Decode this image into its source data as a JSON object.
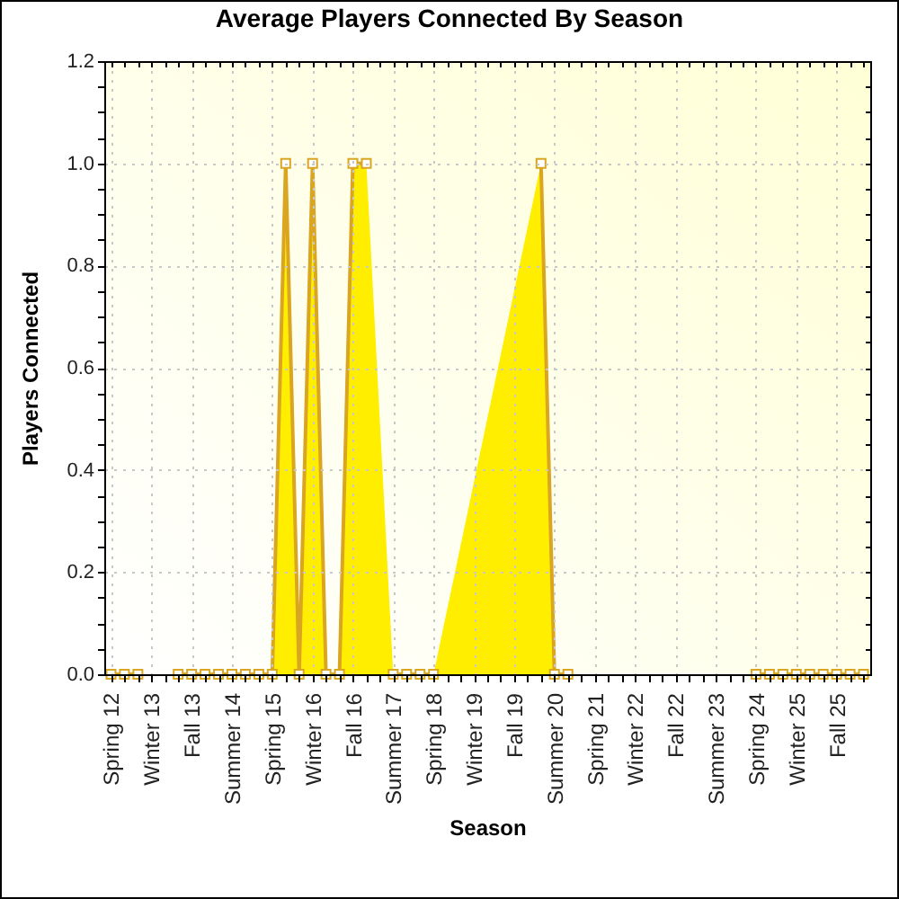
{
  "chart_data": {
    "type": "area",
    "title": "Average Players Connected By Season",
    "xlabel": "Season",
    "ylabel": "Players Connected",
    "categories": [
      "Spring 12",
      null,
      null,
      "Winter 13",
      null,
      null,
      "Fall 13",
      null,
      null,
      "Summer 14",
      null,
      null,
      "Spring 15",
      null,
      null,
      "Winter 16",
      null,
      null,
      "Fall 16",
      null,
      null,
      "Summer 17",
      null,
      null,
      "Spring 18",
      null,
      null,
      "Winter 19",
      null,
      null,
      "Fall 19",
      null,
      null,
      "Summer 20",
      null,
      null,
      "Spring 21",
      null,
      null,
      "Winter 22",
      null,
      null,
      "Fall 22",
      null,
      null,
      "Summer 23",
      null,
      null,
      "Spring 24",
      null,
      null,
      "Winter 25",
      null,
      null,
      "Fall 25",
      null,
      null
    ],
    "series": [
      {
        "color": "#ffee00",
        "values": [
          0,
          0,
          0,
          null,
          null,
          0,
          0,
          0,
          0,
          0,
          0,
          0,
          0,
          1,
          0,
          1,
          0,
          0,
          1,
          1,
          null,
          0,
          0,
          0,
          0,
          null,
          null,
          null,
          null,
          null,
          null,
          null,
          1,
          0,
          0,
          null,
          null,
          null,
          null,
          null,
          null,
          null,
          null,
          null,
          null,
          null,
          null,
          null,
          0,
          0,
          0,
          0,
          0,
          0,
          0,
          0,
          0
        ]
      }
    ],
    "ylim": [
      0,
      1.2
    ],
    "yticks": [
      {
        "value": 0,
        "label": "0.0"
      },
      {
        "value": 0.05,
        "label": null
      },
      {
        "value": 0.1,
        "label": null
      },
      {
        "value": 0.15,
        "label": null
      },
      0.2,
      {
        "value": 0.25,
        "label": null
      },
      {
        "value": 0.3,
        "label": null
      },
      {
        "value": 0.35,
        "label": null
      },
      0.4,
      {
        "value": 0.45,
        "label": null
      },
      {
        "value": 0.5,
        "label": null
      },
      {
        "value": 0.55,
        "label": null
      },
      0.6,
      {
        "value": 0.65,
        "label": null
      },
      {
        "value": 0.7,
        "label": null
      },
      {
        "value": 0.75,
        "label": null
      },
      0.8,
      {
        "value": 0.85,
        "label": null
      },
      {
        "value": 0.9,
        "label": null
      },
      {
        "value": 0.95,
        "label": null
      },
      {
        "value": 1,
        "label": "1.0"
      },
      {
        "value": 1.05,
        "label": null
      },
      {
        "value": 1.1,
        "label": null
      },
      {
        "value": 1.15,
        "label": null
      },
      1.2
    ],
    "grid": true,
    "marker": "square"
  }
}
